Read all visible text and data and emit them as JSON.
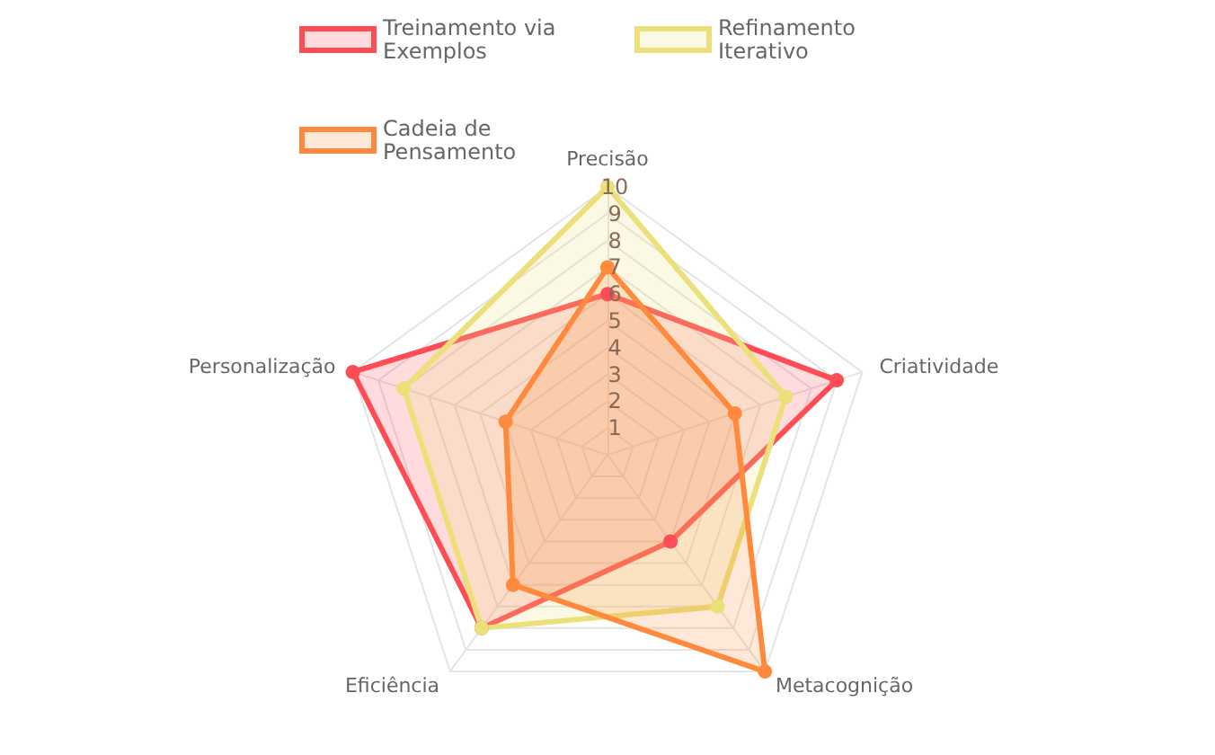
{
  "chart_data": {
    "type": "radar",
    "categories": [
      "Precisão",
      "Criatividade",
      "Metacognição",
      "Eficiência",
      "Personalização"
    ],
    "series": [
      {
        "name": "Treinamento via Exemplos",
        "color": "#ff4d55",
        "values": [
          6,
          9,
          4,
          8,
          10
        ]
      },
      {
        "name": "Refinamento Iterativo",
        "color": "#ebe07a",
        "values": [
          10,
          7,
          7,
          8,
          8
        ]
      },
      {
        "name": "Cadeia de Pensamento",
        "color": "#ff8a3d",
        "values": [
          7,
          5,
          10,
          6,
          4
        ]
      }
    ],
    "ylim": [
      0,
      10
    ],
    "yticks": [
      1,
      2,
      3,
      4,
      5,
      6,
      7,
      8,
      9,
      10
    ],
    "legend": "top",
    "marker": "circle",
    "line_style": "solid",
    "grid": true
  }
}
